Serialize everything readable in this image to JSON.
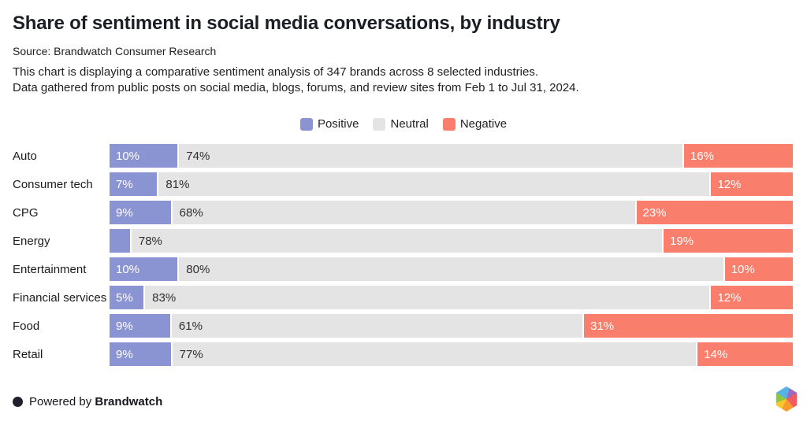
{
  "header": {
    "title": "Share of sentiment in social media conversations, by industry",
    "source": "Source: Brandwatch Consumer Research",
    "description_line1": "This chart is displaying a comparative sentiment analysis of 347 brands across 8 selected industries.",
    "description_line2": "Data gathered from public posts on social media, blogs, forums, and review sites from Feb 1 to Jul 31, 2024."
  },
  "legend": {
    "items": [
      {
        "label": "Positive",
        "color": "#8B94D3"
      },
      {
        "label": "Neutral",
        "color": "#E4E4E4"
      },
      {
        "label": "Negative",
        "color": "#FA7E6C"
      }
    ]
  },
  "chart_data": {
    "type": "bar",
    "orientation": "horizontal",
    "stacked": true,
    "unit": "%",
    "xlim": [
      0,
      100
    ],
    "grid": false,
    "legend_position": "top-center",
    "categories": [
      "Auto",
      "Consumer tech",
      "CPG",
      "Energy",
      "Entertainment",
      "Financial services",
      "Food",
      "Retail"
    ],
    "series": [
      {
        "name": "Positive",
        "color": "#8B94D3",
        "values": [
          10,
          7,
          9,
          3,
          10,
          5,
          9,
          9
        ]
      },
      {
        "name": "Neutral",
        "color": "#E4E4E4",
        "values": [
          74,
          81,
          68,
          78,
          80,
          83,
          61,
          77
        ]
      },
      {
        "name": "Negative",
        "color": "#FA7E6C",
        "values": [
          16,
          12,
          23,
          19,
          10,
          12,
          31,
          14
        ]
      }
    ],
    "data_labels": {
      "positive": [
        "10%",
        "7%",
        "9%",
        "",
        "10%",
        "5%",
        "9%",
        "9%"
      ],
      "neutral": [
        "74%",
        "81%",
        "68%",
        "78%",
        "80%",
        "83%",
        "61%",
        "77%"
      ],
      "negative": [
        "16%",
        "12%",
        "23%",
        "19%",
        "10%",
        "12%",
        "31%",
        "14%"
      ]
    }
  },
  "footer": {
    "powered_by": "Powered by",
    "brand": "Brandwatch",
    "dot_color": "#20202C",
    "logo_colors": {
      "blue": "#56B3E4",
      "purple": "#9A6BBF",
      "red": "#EF5C63",
      "orange": "#F89B2D",
      "yellow": "#FCC62F",
      "green": "#8DC63F"
    }
  }
}
